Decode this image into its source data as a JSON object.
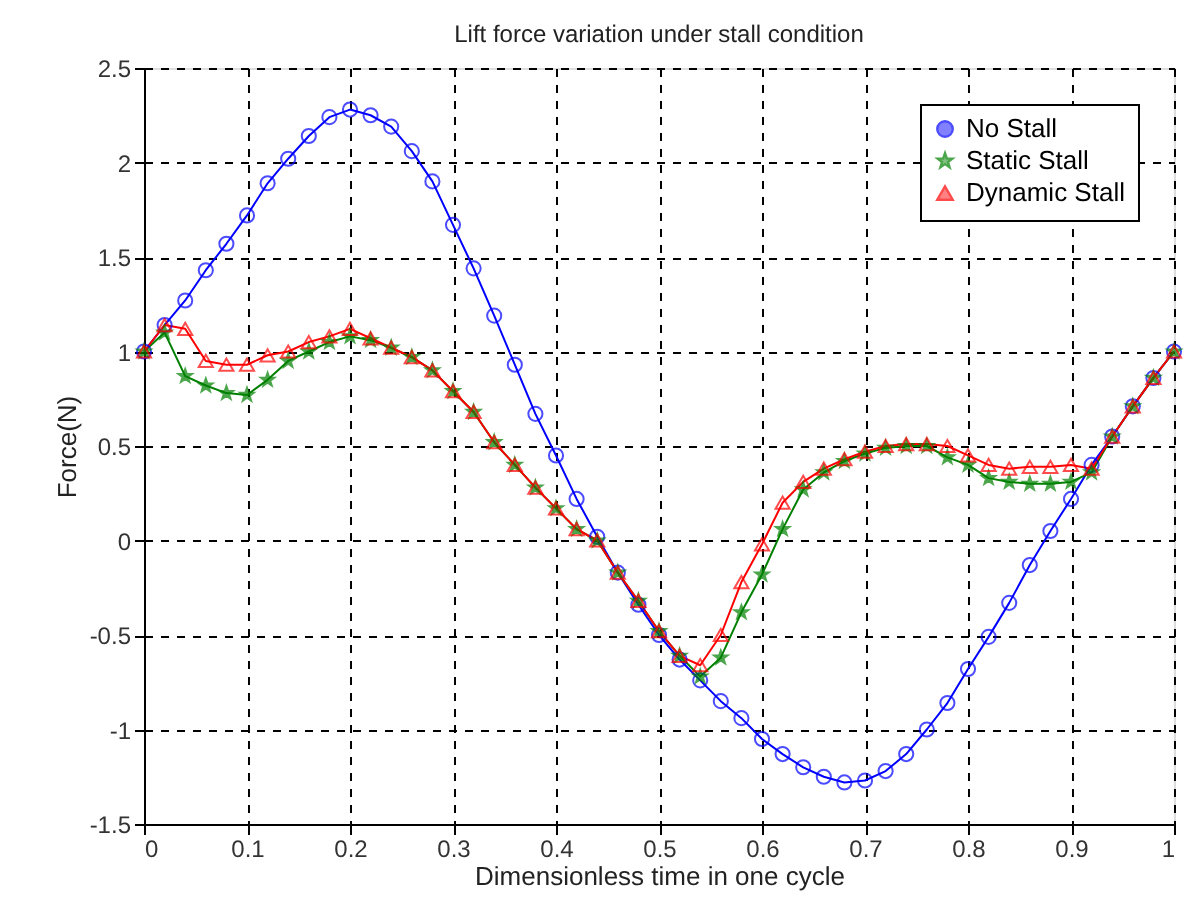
{
  "chart_data": {
    "type": "line",
    "title": "Lift force variation under stall condition",
    "xlabel": "Dimensionless time in one cycle",
    "ylabel": "Force(N)",
    "x": [
      0,
      0.02,
      0.04,
      0.06,
      0.08,
      0.1,
      0.12,
      0.14,
      0.16,
      0.18,
      0.2,
      0.22,
      0.24,
      0.26,
      0.28,
      0.3,
      0.32,
      0.34,
      0.36,
      0.38,
      0.4,
      0.42,
      0.44,
      0.46,
      0.48,
      0.5,
      0.52,
      0.54,
      0.56,
      0.58,
      0.6,
      0.62,
      0.64,
      0.66,
      0.68,
      0.7,
      0.72,
      0.74,
      0.76,
      0.78,
      0.8,
      0.82,
      0.84,
      0.86,
      0.88,
      0.9,
      0.92,
      0.94,
      0.96,
      0.98,
      1
    ],
    "series": [
      {
        "name": "No Stall",
        "color": "#0000ff",
        "marker": "circle",
        "values": [
          1.0,
          1.14,
          1.27,
          1.43,
          1.57,
          1.72,
          1.89,
          2.02,
          2.14,
          2.24,
          2.28,
          2.25,
          2.19,
          2.06,
          1.9,
          1.67,
          1.44,
          1.19,
          0.93,
          0.67,
          0.45,
          0.22,
          0.02,
          -0.17,
          -0.34,
          -0.5,
          -0.63,
          -0.74,
          -0.85,
          -0.94,
          -1.05,
          -1.13,
          -1.2,
          -1.25,
          -1.28,
          -1.27,
          -1.22,
          -1.13,
          -1.0,
          -0.86,
          -0.68,
          -0.51,
          -0.33,
          -0.13,
          0.05,
          0.22,
          0.4,
          0.55,
          0.71,
          0.86,
          1.0
        ]
      },
      {
        "name": "Static Stall",
        "color": "#008000",
        "marker": "star",
        "values": [
          1.0,
          1.1,
          0.87,
          0.82,
          0.78,
          0.77,
          0.85,
          0.95,
          1.0,
          1.05,
          1.08,
          1.06,
          1.02,
          0.97,
          0.9,
          0.79,
          0.68,
          0.52,
          0.4,
          0.28,
          0.17,
          0.06,
          0.0,
          -0.17,
          -0.32,
          -0.48,
          -0.61,
          -0.72,
          -0.62,
          -0.38,
          -0.18,
          0.06,
          0.27,
          0.36,
          0.42,
          0.46,
          0.49,
          0.5,
          0.5,
          0.44,
          0.4,
          0.33,
          0.31,
          0.3,
          0.3,
          0.31,
          0.36,
          0.55,
          0.71,
          0.86,
          1.0
        ]
      },
      {
        "name": "Dynamic Stall",
        "color": "#ff0000",
        "marker": "triangle",
        "values": [
          1.0,
          1.14,
          1.12,
          0.95,
          0.93,
          0.93,
          0.98,
          1.0,
          1.05,
          1.08,
          1.12,
          1.07,
          1.02,
          0.97,
          0.9,
          0.79,
          0.68,
          0.52,
          0.4,
          0.28,
          0.17,
          0.06,
          0.0,
          -0.17,
          -0.32,
          -0.48,
          -0.61,
          -0.66,
          -0.5,
          -0.22,
          -0.02,
          0.2,
          0.31,
          0.38,
          0.43,
          0.47,
          0.5,
          0.51,
          0.51,
          0.5,
          0.45,
          0.4,
          0.38,
          0.39,
          0.39,
          0.4,
          0.38,
          0.55,
          0.71,
          0.86,
          1.0
        ]
      }
    ],
    "xlim": [
      0,
      1
    ],
    "xticks": [
      0,
      0.1,
      0.2,
      0.3,
      0.4,
      0.5,
      0.6,
      0.7,
      0.8,
      0.9,
      1
    ],
    "ylim": [
      -1.5,
      2.5
    ],
    "yticks": [
      -1.5,
      -1,
      -0.5,
      0,
      0.5,
      1,
      1.5,
      2,
      2.5
    ],
    "grid": true,
    "legend": "top right",
    "line_style": "solid"
  }
}
